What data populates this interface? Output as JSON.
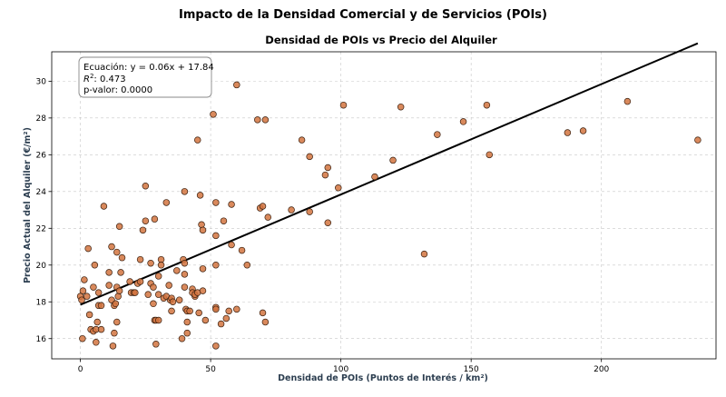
{
  "figure_title": "Impacto de la Densidad Comercial y de Servicios (POIs)",
  "chart_data": {
    "type": "scatter",
    "title": "Densidad de POIs vs Precio del Alquiler",
    "xlabel": "Densidad de POIs (Puntos de Interés / km²)",
    "ylabel": "Precio Actual del Alquiler (€/m²)",
    "xlim": [
      -11,
      244
    ],
    "ylim": [
      14.9,
      31.6
    ],
    "x_ticks": [
      0,
      50,
      100,
      150,
      200
    ],
    "y_ticks": [
      16,
      18,
      20,
      22,
      24,
      26,
      28,
      30
    ],
    "grid": true,
    "regression": {
      "slope": 0.06,
      "intercept": 17.84,
      "x_range": [
        0,
        237
      ]
    },
    "annotation": {
      "lines": [
        "Ecuación: y = 0.06x + 17.84",
        "R²: 0.473",
        "p-valor: 0.0000"
      ],
      "r_label": "R",
      "r_sup": "2",
      "r_rest": ": 0.473"
    },
    "colors": {
      "points": "#d2743f",
      "point_edge": "#3a2010",
      "line": "#000000"
    },
    "points": [
      [
        0,
        18.3
      ],
      [
        0.5,
        18.1
      ],
      [
        0.8,
        16.0
      ],
      [
        1,
        18.6
      ],
      [
        1.5,
        19.2
      ],
      [
        2.5,
        18.3
      ],
      [
        3,
        20.9
      ],
      [
        3.5,
        17.3
      ],
      [
        4,
        16.5
      ],
      [
        5,
        18.8
      ],
      [
        5,
        16.4
      ],
      [
        5.5,
        20.0
      ],
      [
        6,
        16.5
      ],
      [
        6,
        15.8
      ],
      [
        6.5,
        16.9
      ],
      [
        7,
        18.5
      ],
      [
        7,
        17.8
      ],
      [
        8,
        16.5
      ],
      [
        8,
        17.8
      ],
      [
        9,
        23.2
      ],
      [
        11,
        18.9
      ],
      [
        11,
        19.6
      ],
      [
        12,
        21.0
      ],
      [
        12,
        18.1
      ],
      [
        12.5,
        15.6
      ],
      [
        13,
        17.8
      ],
      [
        13,
        16.3
      ],
      [
        13.5,
        17.9
      ],
      [
        14,
        20.7
      ],
      [
        14,
        18.8
      ],
      [
        14,
        16.9
      ],
      [
        14.5,
        18.3
      ],
      [
        15,
        22.1
      ],
      [
        15,
        18.6
      ],
      [
        15.5,
        19.6
      ],
      [
        16,
        20.4
      ],
      [
        19,
        19.1
      ],
      [
        19.5,
        18.5
      ],
      [
        20.5,
        18.5
      ],
      [
        21,
        18.5
      ],
      [
        22,
        19.0
      ],
      [
        23,
        20.3
      ],
      [
        23,
        19.1
      ],
      [
        24,
        21.9
      ],
      [
        25,
        24.3
      ],
      [
        25,
        22.4
      ],
      [
        26,
        18.4
      ],
      [
        27,
        20.1
      ],
      [
        27,
        19.0
      ],
      [
        28,
        17.9
      ],
      [
        28,
        18.8
      ],
      [
        28.5,
        22.5
      ],
      [
        28.5,
        17.0
      ],
      [
        29,
        17.0
      ],
      [
        29,
        15.7
      ],
      [
        30,
        19.4
      ],
      [
        30,
        18.4
      ],
      [
        30,
        17.0
      ],
      [
        31,
        20.3
      ],
      [
        31,
        20.0
      ],
      [
        32,
        18.2
      ],
      [
        33,
        18.3
      ],
      [
        33,
        23.4
      ],
      [
        34,
        18.9
      ],
      [
        34.5,
        18.1
      ],
      [
        35,
        18.2
      ],
      [
        35,
        17.5
      ],
      [
        35.5,
        18.0
      ],
      [
        37,
        19.7
      ],
      [
        38,
        18.1
      ],
      [
        39,
        16.0
      ],
      [
        39.5,
        20.3
      ],
      [
        40,
        20.1
      ],
      [
        40,
        19.5
      ],
      [
        40,
        24.0
      ],
      [
        40,
        18.8
      ],
      [
        40.5,
        17.6
      ],
      [
        41,
        17.5
      ],
      [
        41,
        16.3
      ],
      [
        41,
        16.9
      ],
      [
        42,
        17.5
      ],
      [
        43,
        18.7
      ],
      [
        43,
        18.5
      ],
      [
        44,
        18.3
      ],
      [
        44,
        18.4
      ],
      [
        45,
        26.8
      ],
      [
        45,
        18.5
      ],
      [
        45.5,
        17.4
      ],
      [
        46,
        23.8
      ],
      [
        46.5,
        22.2
      ],
      [
        47,
        21.9
      ],
      [
        47,
        19.8
      ],
      [
        47,
        18.6
      ],
      [
        48,
        17.0
      ],
      [
        51,
        28.2
      ],
      [
        52,
        23.4
      ],
      [
        52,
        21.6
      ],
      [
        52,
        20.0
      ],
      [
        52,
        17.7
      ],
      [
        52,
        17.6
      ],
      [
        52,
        15.6
      ],
      [
        54,
        16.8
      ],
      [
        55,
        22.4
      ],
      [
        56,
        17.1
      ],
      [
        57,
        17.5
      ],
      [
        58,
        21.1
      ],
      [
        58,
        23.3
      ],
      [
        60,
        29.8
      ],
      [
        60,
        17.6
      ],
      [
        62,
        20.8
      ],
      [
        64,
        20.0
      ],
      [
        68,
        27.9
      ],
      [
        69,
        23.1
      ],
      [
        70,
        23.2
      ],
      [
        70,
        17.4
      ],
      [
        71,
        27.9
      ],
      [
        71,
        16.9
      ],
      [
        72,
        22.6
      ],
      [
        81,
        23.0
      ],
      [
        85,
        26.8
      ],
      [
        88,
        25.9
      ],
      [
        88,
        22.9
      ],
      [
        94,
        24.9
      ],
      [
        95,
        25.3
      ],
      [
        95,
        22.3
      ],
      [
        99,
        24.2
      ],
      [
        101,
        28.7
      ],
      [
        113,
        24.8
      ],
      [
        120,
        25.7
      ],
      [
        123,
        28.6
      ],
      [
        132,
        20.6
      ],
      [
        137,
        27.1
      ],
      [
        147,
        27.8
      ],
      [
        156,
        28.7
      ],
      [
        157,
        26.0
      ],
      [
        187,
        27.2
      ],
      [
        193,
        27.3
      ],
      [
        210,
        28.9
      ],
      [
        237,
        26.8
      ]
    ]
  }
}
